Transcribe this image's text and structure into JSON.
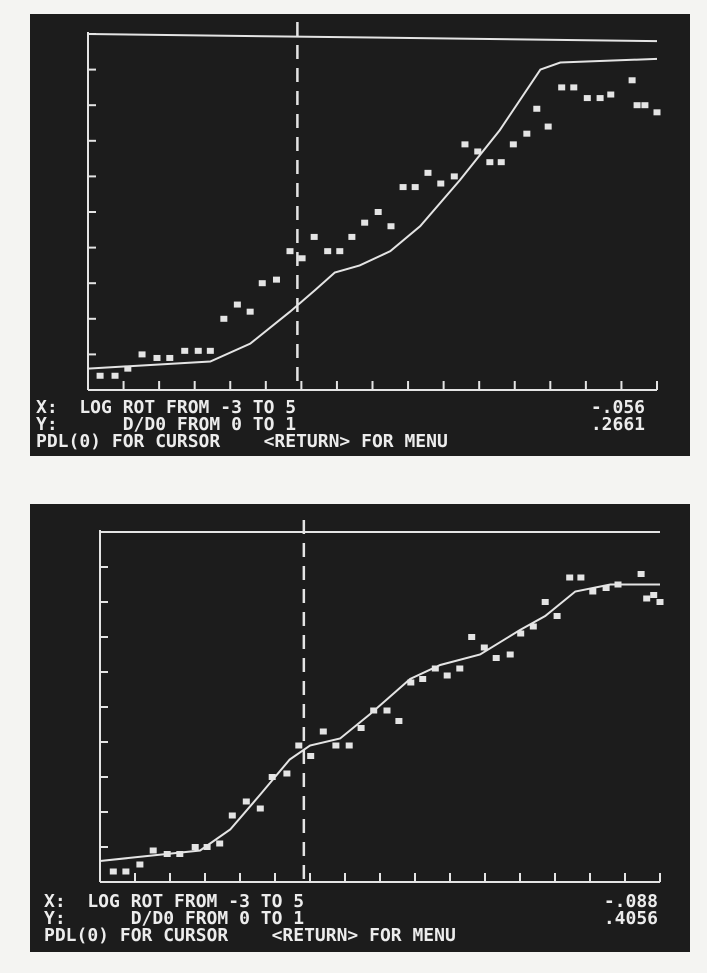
{
  "chart_data": [
    {
      "type": "scatter",
      "color": "#e4e4e4",
      "xlim": [
        -3,
        5
      ],
      "ylim": [
        0,
        1
      ],
      "xticks": [
        -3,
        -2.5,
        -2,
        -1.5,
        -1,
        -0.5,
        0,
        0.5,
        1,
        1.5,
        2,
        2.5,
        3,
        3.5,
        4,
        4.5,
        5
      ],
      "yticks": [
        0,
        0.1,
        0.2,
        0.3,
        0.4,
        0.5,
        0.6,
        0.7,
        0.8,
        0.9,
        1
      ],
      "series": [
        {
          "type": "scatter",
          "x": [
            -2.83,
            -2.62,
            -2.44,
            -2.24,
            -2.03,
            -1.85,
            -1.64,
            -1.45,
            -1.28,
            -1.09,
            -0.9,
            -0.72,
            -0.55,
            -0.35,
            -0.16,
            0.01,
            0.18,
            0.37,
            0.54,
            0.71,
            0.89,
            1.08,
            1.26,
            1.43,
            1.6,
            1.78,
            1.96,
            2.15,
            2.3,
            2.48,
            2.65,
            2.81,
            2.98,
            3.17,
            3.31,
            3.47,
            3.66,
            3.83,
            4.02,
            4.2,
            4.35,
            4.65,
            4.72,
            4.83,
            5.0
          ],
          "values": [
            0.04,
            0.04,
            0.06,
            0.1,
            0.09,
            0.09,
            0.11,
            0.11,
            0.11,
            0.2,
            0.24,
            0.22,
            0.3,
            0.31,
            0.39,
            0.37,
            0.43,
            0.39,
            0.39,
            0.43,
            0.47,
            0.5,
            0.46,
            0.57,
            0.57,
            0.61,
            0.58,
            0.6,
            0.69,
            0.67,
            0.64,
            0.64,
            0.69,
            0.72,
            0.79,
            0.74,
            0.85,
            0.85,
            0.82,
            0.82,
            0.83,
            0.87,
            0.8,
            0.8,
            0.78
          ]
        },
        {
          "type": "line",
          "x": [
            -3,
            -1.28,
            -0.72,
            -0.16,
            0.19,
            0.47,
            0.82,
            1.25,
            1.67,
            2.23,
            2.79,
            3.36,
            3.64,
            5
          ],
          "values": [
            0.06,
            0.08,
            0.13,
            0.22,
            0.28,
            0.33,
            0.35,
            0.39,
            0.46,
            0.59,
            0.73,
            0.9,
            0.92,
            0.93
          ]
        },
        {
          "type": "line",
          "x": [
            -3,
            5
          ],
          "values": [
            1.0,
            0.98
          ]
        }
      ],
      "cursor": {
        "x": {
          "value": -0.056,
          "label": "-.056"
        },
        "y": {
          "value": 0.2661,
          "label": ".2661"
        }
      },
      "annotations": [
        "X:  LOG ROT FROM -3 TO 5",
        "Y:      D/D0 FROM 0 TO 1",
        "PDL(0) FOR CURSOR    <RETURN> FOR MENU"
      ]
    },
    {
      "type": "scatter",
      "color": "#e4e4e4",
      "xlim": [
        -3,
        5
      ],
      "ylim": [
        0,
        1
      ],
      "xticks": [
        -3,
        -2.5,
        -2,
        -1.5,
        -1,
        -0.5,
        0,
        0.5,
        1,
        1.5,
        2,
        2.5,
        3,
        3.5,
        4,
        4.5,
        5
      ],
      "yticks": [
        0,
        0.1,
        0.2,
        0.3,
        0.4,
        0.5,
        0.6,
        0.7,
        0.8,
        0.9,
        1
      ],
      "series": [
        {
          "type": "scatter",
          "x": [
            -2.81,
            -2.63,
            -2.43,
            -2.24,
            -2.04,
            -1.86,
            -1.64,
            -1.47,
            -1.29,
            -1.11,
            -0.91,
            -0.71,
            -0.54,
            -0.33,
            -0.16,
            0.01,
            0.19,
            0.37,
            0.56,
            0.73,
            0.91,
            1.1,
            1.27,
            1.44,
            1.61,
            1.79,
            1.96,
            2.14,
            2.31,
            2.49,
            2.66,
            2.86,
            3.01,
            3.19,
            3.36,
            3.53,
            3.71,
            3.87,
            4.04,
            4.23,
            4.4,
            4.73,
            4.81,
            4.91,
            5.0
          ],
          "values": [
            0.03,
            0.03,
            0.05,
            0.09,
            0.08,
            0.08,
            0.1,
            0.1,
            0.11,
            0.19,
            0.23,
            0.21,
            0.3,
            0.31,
            0.39,
            0.36,
            0.43,
            0.39,
            0.39,
            0.44,
            0.49,
            0.49,
            0.46,
            0.57,
            0.58,
            0.61,
            0.59,
            0.61,
            0.7,
            0.67,
            0.64,
            0.65,
            0.71,
            0.73,
            0.8,
            0.76,
            0.87,
            0.87,
            0.83,
            0.84,
            0.85,
            0.88,
            0.81,
            0.82,
            0.8
          ]
        },
        {
          "type": "line",
          "x": [
            -3,
            -1.57,
            -1.14,
            -0.71,
            -0.29,
            0,
            0.43,
            0.86,
            1.43,
            1.86,
            2.43,
            3.0,
            3.36,
            3.79,
            4.29,
            5
          ],
          "values": [
            0.06,
            0.09,
            0.15,
            0.25,
            0.35,
            0.39,
            0.41,
            0.48,
            0.58,
            0.62,
            0.65,
            0.72,
            0.76,
            0.83,
            0.85,
            0.85
          ]
        },
        {
          "type": "line",
          "x": [
            -3,
            5
          ],
          "values": [
            1.0,
            1.0
          ]
        }
      ],
      "cursor": {
        "x": {
          "value": -0.088,
          "label": "-.088"
        },
        "y": {
          "value": 0.4056,
          "label": ".4056"
        }
      },
      "annotations": [
        "X:  LOG ROT FROM -3 TO 5",
        "Y:      D/D0 FROM 0 TO 1",
        "PDL(0) FOR CURSOR    <RETURN> FOR MENU"
      ]
    }
  ]
}
